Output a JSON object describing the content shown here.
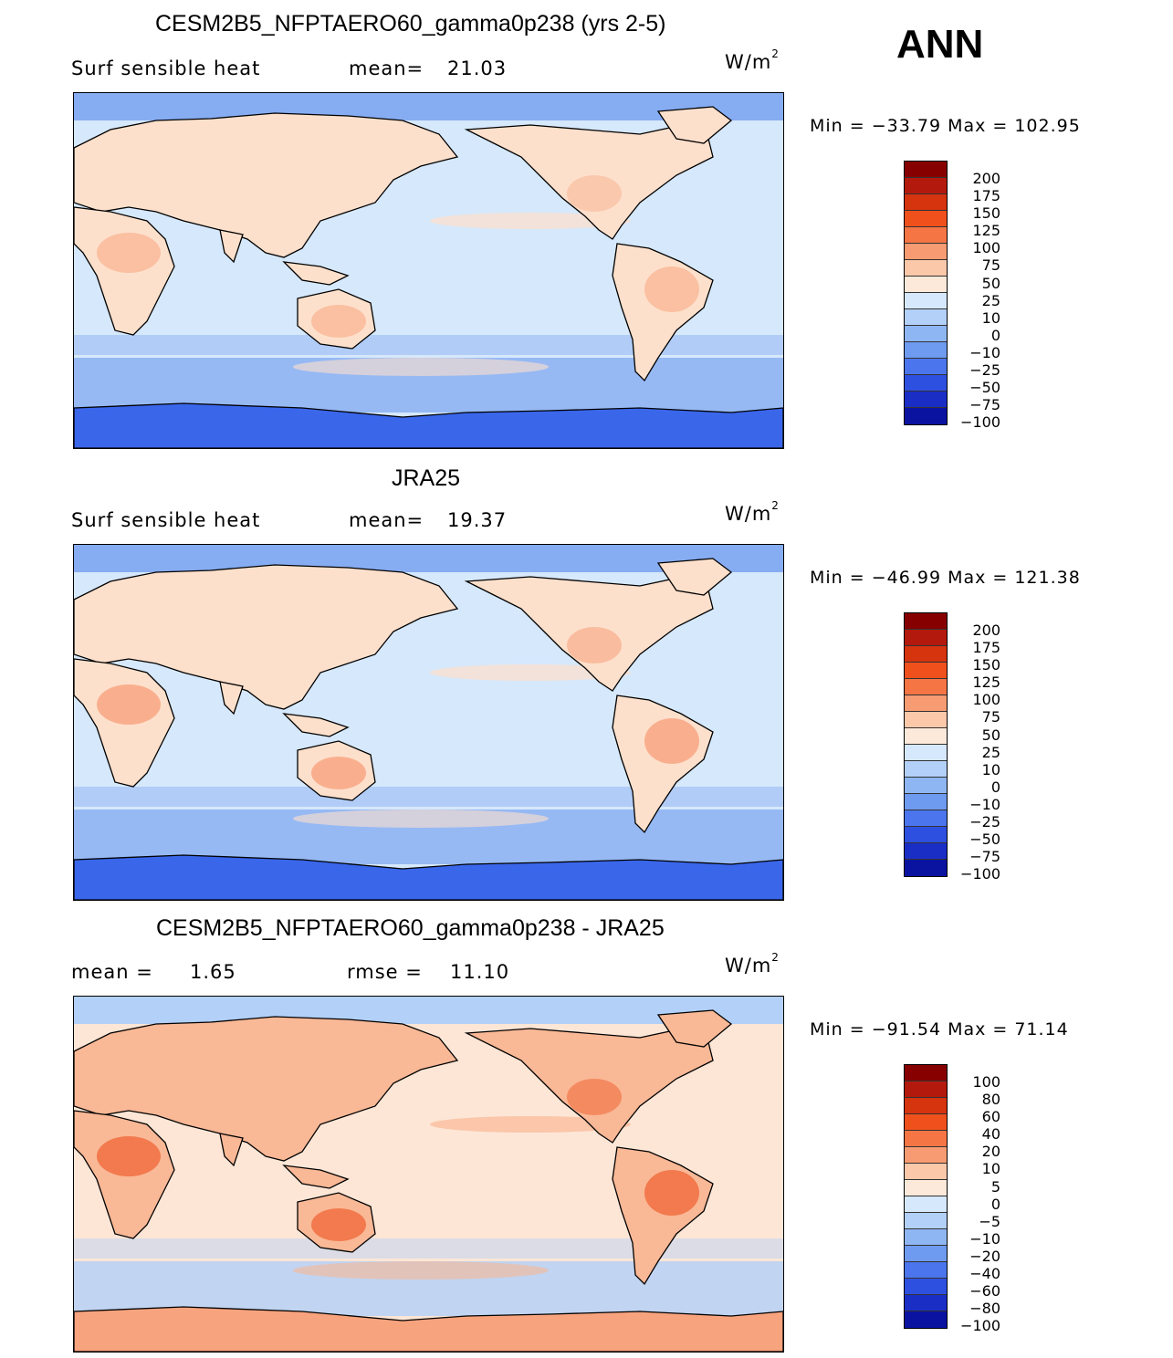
{
  "season": "ANN",
  "panels": [
    {
      "title": "CESM2B5_NFPTAERO60_gamma0p238 (yrs 2-5)",
      "left_label": "Surf  sensible  heat",
      "mean_label": "mean=",
      "mean_value": "21.03",
      "units": "W/m",
      "units_exp": "2",
      "min_max": "Min  =  −33.79  Max  =  102.95",
      "colorbar": {
        "labels": [
          "200",
          "175",
          "150",
          "125",
          "100",
          "75",
          "50",
          "25",
          "10",
          "0",
          "−10",
          "−25",
          "−50",
          "−75",
          "−100"
        ],
        "colors": [
          "#870000",
          "#b3190c",
          "#d6330f",
          "#f0501c",
          "#f57545",
          "#f79b72",
          "#fcc8aa",
          "#fde9da",
          "#d6e8fb",
          "#b2d0f8",
          "#8eb6f3",
          "#6e9af0",
          "#4a75ec",
          "#2e50e0",
          "#1a2ec6",
          "#0a12a0"
        ]
      },
      "map_colors": {
        "ocean": "#d6e8fb",
        "land": "#fde0cc",
        "land_warm": "#f9b896",
        "polar": "#3a66ea",
        "cold": "#86acf2"
      }
    },
    {
      "title": "JRA25",
      "left_label": "Surf  sensible  heat",
      "mean_label": "mean=",
      "mean_value": "19.37",
      "units": "W/m",
      "units_exp": "2",
      "min_max": "Min  =  −46.99  Max  =  121.38",
      "colorbar": {
        "labels": [
          "200",
          "175",
          "150",
          "125",
          "100",
          "75",
          "50",
          "25",
          "10",
          "0",
          "−10",
          "−25",
          "−50",
          "−75",
          "−100"
        ],
        "colors": [
          "#870000",
          "#b3190c",
          "#d6330f",
          "#f0501c",
          "#f57545",
          "#f79b72",
          "#fcc8aa",
          "#fde9da",
          "#d6e8fb",
          "#b2d0f8",
          "#8eb6f3",
          "#6e9af0",
          "#4a75ec",
          "#2e50e0",
          "#1a2ec6",
          "#0a12a0"
        ]
      },
      "map_colors": {
        "ocean": "#d6e8fb",
        "land": "#fde0cc",
        "land_warm": "#f7a37e",
        "polar": "#3a66ea",
        "cold": "#86acf2"
      }
    },
    {
      "title": "CESM2B5_NFPTAERO60_gamma0p238 - JRA25",
      "left_label": "mean  =",
      "mean_label": "rmse  =",
      "left_value": "1.65",
      "mean_value": "11.10",
      "units": "W/m",
      "units_exp": "2",
      "min_max": "Min  =  −91.54  Max  =    71.14",
      "colorbar": {
        "labels": [
          "100",
          "80",
          "60",
          "40",
          "20",
          "10",
          "5",
          "0",
          "−5",
          "−10",
          "−20",
          "−40",
          "−60",
          "−80",
          "−100"
        ],
        "colors": [
          "#870000",
          "#b3190c",
          "#d6330f",
          "#f0501c",
          "#f57545",
          "#f79b72",
          "#fcc8aa",
          "#fde9da",
          "#d6e8fb",
          "#b2d0f8",
          "#8eb6f3",
          "#6e9af0",
          "#4a75ec",
          "#2e50e0",
          "#1a2ec6",
          "#0a12a0"
        ]
      },
      "map_colors": {
        "ocean": "#fde6d6",
        "land": "#f9b896",
        "land_warm": "#f06a3c",
        "polar": "#f7a37e",
        "cold": "#b2d0f8"
      }
    }
  ]
}
